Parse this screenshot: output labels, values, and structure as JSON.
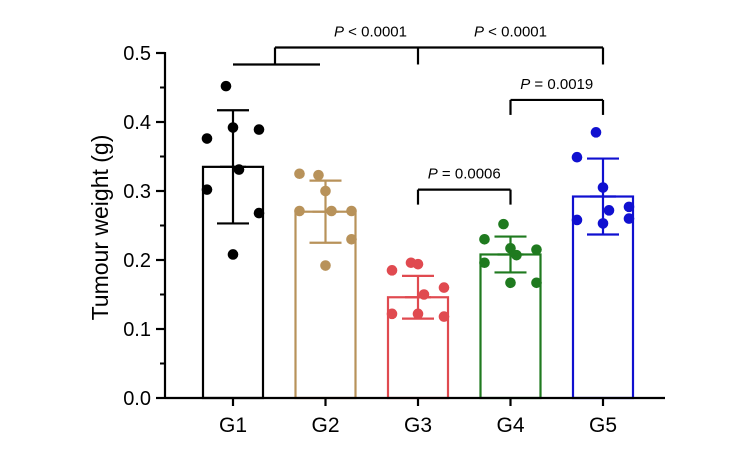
{
  "chart_data": {
    "type": "bar",
    "title": "",
    "xlabel": "",
    "ylabel": "Tumour weight (g)",
    "ylim": [
      0,
      0.5
    ],
    "yticks": [
      {
        "value": 0.0,
        "label": "0.0"
      },
      {
        "value": 0.1,
        "label": "0.1"
      },
      {
        "value": 0.2,
        "label": "0.2"
      },
      {
        "value": 0.3,
        "label": "0.3"
      },
      {
        "value": 0.4,
        "label": "0.4"
      },
      {
        "value": 0.5,
        "label": "0.5"
      }
    ],
    "minor_tick_step": 0.05,
    "categories": [
      "G1",
      "G2",
      "G3",
      "G4",
      "G5"
    ],
    "groups": [
      {
        "name": "G1",
        "color": "#000000",
        "mean": 0.335,
        "sd": 0.082,
        "points": [
          0.452,
          0.376,
          0.392,
          0.389,
          0.331,
          0.302,
          0.268,
          0.208
        ]
      },
      {
        "name": "G2",
        "color": "#b8925a",
        "mean": 0.27,
        "sd": 0.045,
        "points": [
          0.323,
          0.325,
          0.3,
          0.271,
          0.271,
          0.271,
          0.23,
          0.192
        ]
      },
      {
        "name": "G3",
        "color": "#e04a50",
        "mean": 0.146,
        "sd": 0.031,
        "points": [
          0.196,
          0.185,
          0.194,
          0.16,
          0.15,
          0.122,
          0.118,
          0.122
        ]
      },
      {
        "name": "G4",
        "color": "#1f7a1f",
        "mean": 0.208,
        "sd": 0.026,
        "points": [
          0.252,
          0.23,
          0.217,
          0.215,
          0.207,
          0.196,
          0.167,
          0.167
        ]
      },
      {
        "name": "G5",
        "color": "#1010d0",
        "mean": 0.292,
        "sd": 0.055,
        "points": [
          0.385,
          0.349,
          0.305,
          0.277,
          0.272,
          0.258,
          0.26,
          0.253
        ]
      }
    ],
    "annotations": [
      {
        "type": "bracket",
        "from": "G3",
        "to": "G4",
        "y": 0.302,
        "label": "P = 0.0006"
      },
      {
        "type": "bracket",
        "from": "G4",
        "to": "G5",
        "y": 0.432,
        "label": "P = 0.0019"
      },
      {
        "type": "bracket",
        "from": "G1",
        "to": "G5",
        "y": 0.508,
        "center": "G3",
        "label_left": "P < 0.0001",
        "label_right": "P < 0.0001"
      }
    ]
  }
}
